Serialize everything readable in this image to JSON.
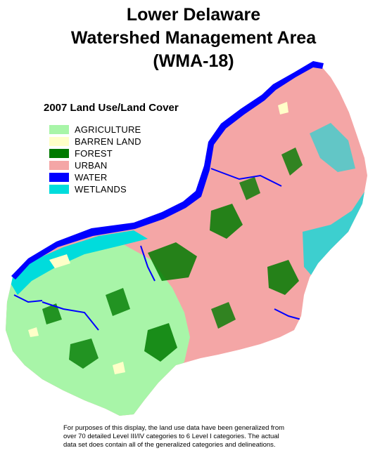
{
  "title": {
    "line1": "Lower Delaware",
    "line2": "Watershed Management Area",
    "line3": "(WMA-18)"
  },
  "legend": {
    "title": "2007 Land Use/Land Cover",
    "items": [
      {
        "label": "AGRICULTURE",
        "color": "#a8f5a8"
      },
      {
        "label": "BARREN LAND",
        "color": "#ffffc8"
      },
      {
        "label": "FOREST",
        "color": "#007a00"
      },
      {
        "label": "URBAN",
        "color": "#f4a6a6"
      },
      {
        "label": "WATER",
        "color": "#0000ff"
      },
      {
        "label": "WETLANDS",
        "color": "#00dcdc"
      }
    ]
  },
  "note": {
    "line1": "For purposes of this display, the land use data have been generalized from",
    "line2": "over 70 detailed Level III/IV categories to 6 Level I categories.  The actual",
    "line3": "data set does contain all of the generalized categories and delineations."
  }
}
